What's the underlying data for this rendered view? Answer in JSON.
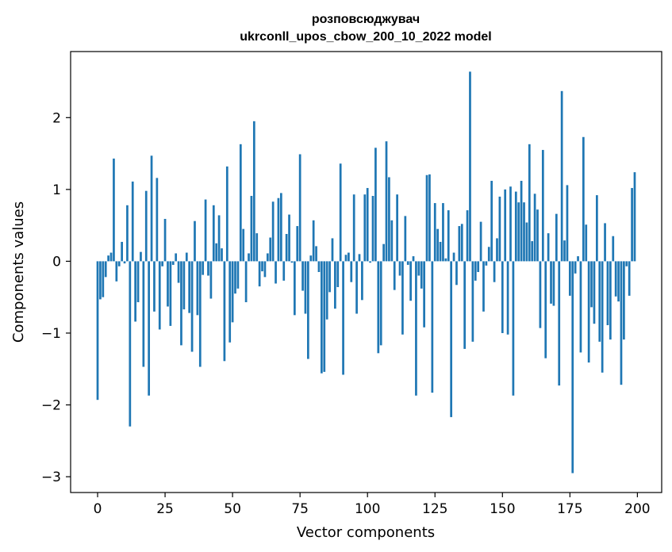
{
  "chart_data": {
    "type": "bar",
    "title": [
      "розповсюджувач",
      "ukrconll_upos_cbow_200_10_2022 model"
    ],
    "xlabel": "Vector components",
    "ylabel": "Components values",
    "xlim": [
      -10,
      209
    ],
    "ylim": [
      -3.22,
      2.92
    ],
    "xticks": [
      0,
      25,
      50,
      75,
      100,
      125,
      150,
      175,
      200
    ],
    "yticks": [
      -3,
      -2,
      -1,
      0,
      1,
      2
    ],
    "ytick_labels": [
      "−3",
      "−2",
      "−1",
      "0",
      "1",
      "2"
    ],
    "bar_color": "#1f77b4",
    "x": [
      0,
      1,
      2,
      3,
      4,
      5,
      6,
      7,
      8,
      9,
      10,
      11,
      12,
      13,
      14,
      15,
      16,
      17,
      18,
      19,
      20,
      21,
      22,
      23,
      24,
      25,
      26,
      27,
      28,
      29,
      30,
      31,
      32,
      33,
      34,
      35,
      36,
      37,
      38,
      39,
      40,
      41,
      42,
      43,
      44,
      45,
      46,
      47,
      48,
      49,
      50,
      51,
      52,
      53,
      54,
      55,
      56,
      57,
      58,
      59,
      60,
      61,
      62,
      63,
      64,
      65,
      66,
      67,
      68,
      69,
      70,
      71,
      72,
      73,
      74,
      75,
      76,
      77,
      78,
      79,
      80,
      81,
      82,
      83,
      84,
      85,
      86,
      87,
      88,
      89,
      90,
      91,
      92,
      93,
      94,
      95,
      96,
      97,
      98,
      99,
      100,
      101,
      102,
      103,
      104,
      105,
      106,
      107,
      108,
      109,
      110,
      111,
      112,
      113,
      114,
      115,
      116,
      117,
      118,
      119,
      120,
      121,
      122,
      123,
      124,
      125,
      126,
      127,
      128,
      129,
      130,
      131,
      132,
      133,
      134,
      135,
      136,
      137,
      138,
      139,
      140,
      141,
      142,
      143,
      144,
      145,
      146,
      147,
      148,
      149,
      150,
      151,
      152,
      153,
      154,
      155,
      156,
      157,
      158,
      159,
      160,
      161,
      162,
      163,
      164,
      165,
      166,
      167,
      168,
      169,
      170,
      171,
      172,
      173,
      174,
      175,
      176,
      177,
      178,
      179,
      180,
      181,
      182,
      183,
      184,
      185,
      186,
      187,
      188,
      189,
      190,
      191,
      192,
      193,
      194,
      195,
      196,
      197,
      198,
      199
    ],
    "values": [
      -1.93,
      -0.53,
      -0.5,
      -0.22,
      0.08,
      0.12,
      1.43,
      -0.28,
      -0.07,
      0.27,
      -0.03,
      0.78,
      -2.3,
      1.11,
      -0.84,
      -0.57,
      0.13,
      -1.47,
      0.98,
      -1.87,
      1.47,
      -0.7,
      1.16,
      -0.95,
      -0.07,
      0.59,
      -0.63,
      -0.9,
      -0.05,
      0.11,
      -0.3,
      -1.17,
      -0.67,
      0.12,
      -0.72,
      -1.26,
      0.56,
      -0.75,
      -1.47,
      -0.19,
      0.86,
      -0.2,
      -0.52,
      0.78,
      0.25,
      0.64,
      0.18,
      -1.39,
      1.32,
      -1.13,
      -0.85,
      -0.45,
      -0.38,
      1.63,
      0.45,
      -0.57,
      0.11,
      0.91,
      1.95,
      0.39,
      -0.35,
      -0.14,
      -0.22,
      0.11,
      0.33,
      0.83,
      -0.31,
      0.88,
      0.95,
      -0.27,
      0.38,
      0.65,
      -0.02,
      -0.75,
      0.49,
      1.49,
      -0.41,
      -0.73,
      -1.36,
      0.08,
      0.57,
      0.21,
      -0.15,
      -1.56,
      -1.54,
      -0.81,
      -0.43,
      0.32,
      -0.66,
      -0.36,
      1.36,
      -1.58,
      0.09,
      0.12,
      -0.29,
      0.93,
      -0.73,
      0.1,
      -0.54,
      0.93,
      1.02,
      -0.02,
      0.91,
      1.58,
      -1.28,
      -1.17,
      0.24,
      1.67,
      1.17,
      0.57,
      -0.4,
      0.93,
      -0.2,
      -1.02,
      0.63,
      -0.05,
      -0.55,
      0.07,
      -1.87,
      -0.2,
      -0.38,
      -0.92,
      1.2,
      1.21,
      -1.83,
      0.81,
      0.45,
      0.27,
      0.81,
      0.04,
      0.71,
      -2.17,
      0.12,
      -0.33,
      0.49,
      0.52,
      -1.22,
      0.71,
      2.64,
      -1.12,
      -0.27,
      -0.15,
      0.55,
      -0.7,
      -0.06,
      0.2,
      1.12,
      -0.29,
      0.32,
      0.9,
      -1.0,
      1.0,
      -1.02,
      1.04,
      -1.87,
      0.97,
      0.82,
      1.12,
      0.82,
      0.54,
      1.63,
      0.28,
      0.94,
      0.72,
      -0.93,
      1.55,
      -1.35,
      0.39,
      -0.59,
      -0.62,
      0.66,
      -1.73,
      2.37,
      0.29,
      1.06,
      -0.48,
      -2.95,
      -0.17,
      0.07,
      -1.27,
      1.73,
      0.51,
      -1.41,
      -0.64,
      -0.87,
      0.92,
      -1.12,
      -1.55,
      0.53,
      -0.89,
      -1.09,
      0.35,
      -0.49,
      -0.56,
      -1.72,
      -1.09,
      -0.07,
      -0.48,
      1.02,
      1.24
    ]
  }
}
